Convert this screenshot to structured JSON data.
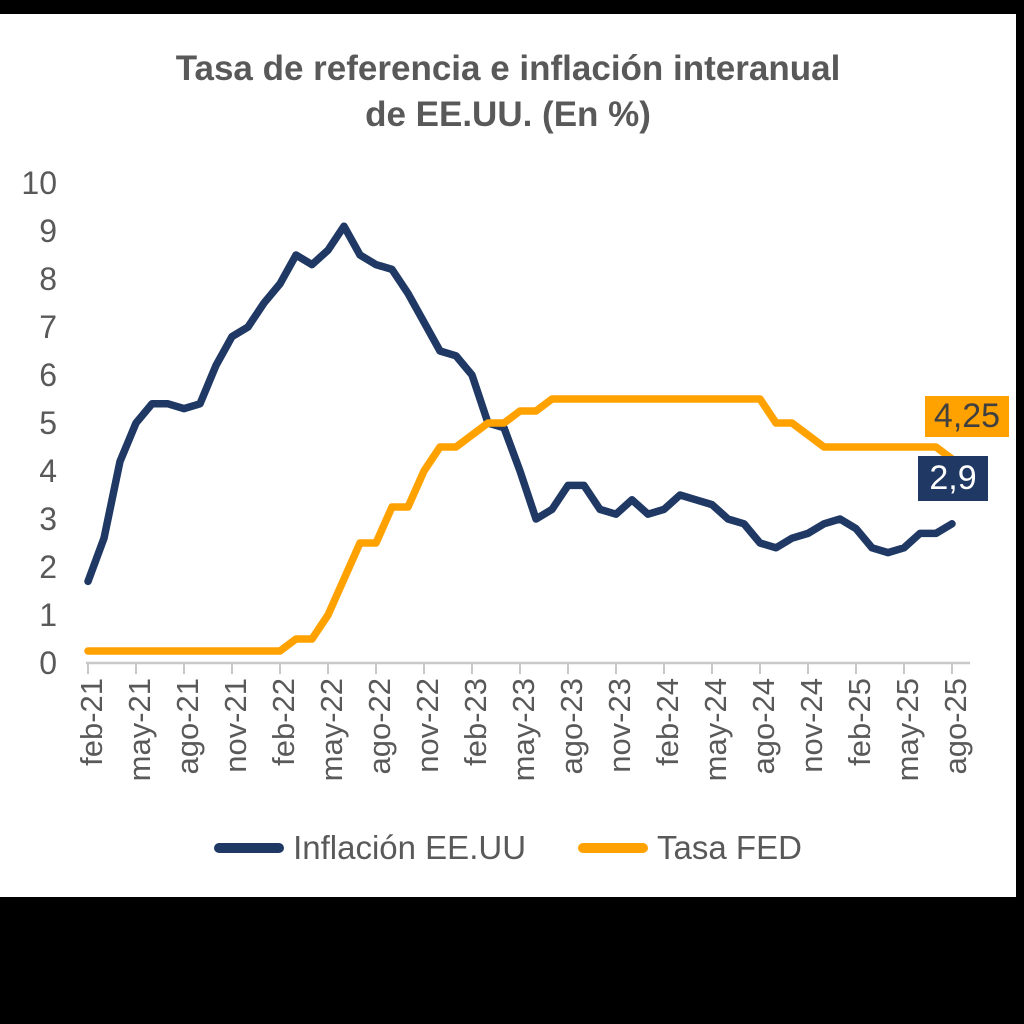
{
  "page": {
    "background": "#000000",
    "panel_background": "#ffffff"
  },
  "title": {
    "line1": "Tasa de referencia e inflación interanual",
    "line2": "de EE.UU. (En %)",
    "color": "#595959"
  },
  "chart_data": {
    "type": "line",
    "title": "Tasa de referencia e inflación interanual de EE.UU. (En %)",
    "xlabel": "",
    "ylabel": "",
    "ylim": [
      0,
      10
    ],
    "y_ticks": [
      0,
      1,
      2,
      3,
      4,
      5,
      6,
      7,
      8,
      9,
      10
    ],
    "grid": false,
    "legend_position": "bottom",
    "x_tick_every": 3,
    "x": [
      "feb-21",
      "mar-21",
      "abr-21",
      "may-21",
      "jun-21",
      "jul-21",
      "ago-21",
      "sep-21",
      "oct-21",
      "nov-21",
      "dic-21",
      "ene-22",
      "feb-22",
      "mar-22",
      "abr-22",
      "may-22",
      "jun-22",
      "jul-22",
      "ago-22",
      "sep-22",
      "oct-22",
      "nov-22",
      "dic-22",
      "ene-23",
      "feb-23",
      "mar-23",
      "abr-23",
      "may-23",
      "jun-23",
      "jul-23",
      "ago-23",
      "sep-23",
      "oct-23",
      "nov-23",
      "dic-23",
      "ene-24",
      "feb-24",
      "mar-24",
      "abr-24",
      "may-24",
      "jun-24",
      "jul-24",
      "ago-24",
      "sep-24",
      "oct-24",
      "nov-24",
      "dic-24",
      "ene-25",
      "feb-25",
      "mar-25",
      "abr-25",
      "may-25",
      "jun-25",
      "jul-25",
      "ago-25"
    ],
    "series": [
      {
        "name": "Inflación EE.UU",
        "color": "#1F3864",
        "values": [
          1.7,
          2.6,
          4.2,
          5.0,
          5.4,
          5.4,
          5.3,
          5.4,
          6.2,
          6.8,
          7.0,
          7.5,
          7.9,
          8.5,
          8.3,
          8.6,
          9.1,
          8.5,
          8.3,
          8.2,
          7.7,
          7.1,
          6.5,
          6.4,
          6.0,
          5.0,
          4.9,
          4.0,
          3.0,
          3.2,
          3.7,
          3.7,
          3.2,
          3.1,
          3.4,
          3.1,
          3.2,
          3.5,
          3.4,
          3.3,
          3.0,
          2.9,
          2.5,
          2.4,
          2.6,
          2.7,
          2.9,
          3.0,
          2.8,
          2.4,
          2.3,
          2.4,
          2.7,
          2.7,
          2.9
        ]
      },
      {
        "name": "Tasa FED",
        "color": "#FFA200",
        "values": [
          0.25,
          0.25,
          0.25,
          0.25,
          0.25,
          0.25,
          0.25,
          0.25,
          0.25,
          0.25,
          0.25,
          0.25,
          0.25,
          0.5,
          0.5,
          1.0,
          1.75,
          2.5,
          2.5,
          3.25,
          3.25,
          4.0,
          4.5,
          4.5,
          4.75,
          5.0,
          5.0,
          5.25,
          5.25,
          5.5,
          5.5,
          5.5,
          5.5,
          5.5,
          5.5,
          5.5,
          5.5,
          5.5,
          5.5,
          5.5,
          5.5,
          5.5,
          5.5,
          5.0,
          5.0,
          4.75,
          4.5,
          4.5,
          4.5,
          4.5,
          4.5,
          4.5,
          4.5,
          4.5,
          4.25
        ]
      }
    ],
    "end_labels": [
      {
        "series": "Tasa FED",
        "text": "4,25",
        "bg": "#FFA200",
        "text_color": "#404040"
      },
      {
        "series": "Inflación EE.UU",
        "text": "2,9",
        "bg": "#1F3864",
        "text_color": "#ffffff"
      }
    ],
    "axis_color": "#C8C8C8",
    "tick_label_color": "#595959"
  },
  "legend": {
    "items": [
      {
        "label": "Inflación EE.UU",
        "color": "#1F3864"
      },
      {
        "label": "Tasa FED",
        "color": "#FFA200"
      }
    ]
  }
}
